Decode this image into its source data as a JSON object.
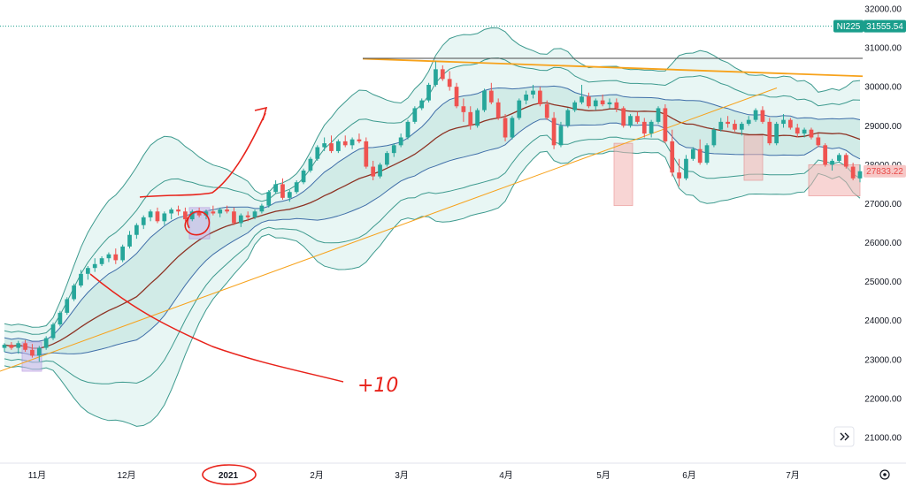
{
  "colors": {
    "up": "#26a69a",
    "down": "#ef5350",
    "band_outer": "#3d9a8e",
    "band_fill": "#d6efeb",
    "mid_line": "#8d3324",
    "inner_band": "#3f6ea8",
    "resistance": "#f7a21b",
    "support": "#f7a21b",
    "top_line": "#4a4a4a",
    "highlight_red": "#f3b4b2",
    "highlight_purple": "#c9b3ea",
    "annotation": "#e8221a",
    "ticker_bg": "#1a9e8c",
    "last_price_bg": "#f7c7c6",
    "last_price_text": "#e84a47"
  },
  "icons": {
    "scroll": "double-chevron-right-icon",
    "settings": "gear-icon"
  },
  "annotation_text": "+10",
  "chart_data": {
    "type": "candlestick",
    "symbol": "NI225",
    "reference_price": "31555.54",
    "last_price": "27833.22",
    "x": [
      "11月",
      "12月",
      "2021",
      "2月",
      "3月",
      "4月",
      "5月",
      "6月",
      "7月"
    ],
    "yticks": [
      "32000.00",
      "31000.00",
      "30000.00",
      "29000.00",
      "28000.00",
      "27000.00",
      "26000.00",
      "25000.00",
      "24000.00",
      "23000.00",
      "22000.00",
      "21000.00"
    ],
    "ylim": [
      20600,
      32200
    ],
    "grid": false,
    "series": [
      {
        "values": [
          [
            23300,
            23420,
            23200,
            23380
          ],
          [
            23380,
            23450,
            23250,
            23300
          ],
          [
            23300,
            23480,
            23150,
            23420
          ],
          [
            23420,
            23500,
            23200,
            23250
          ],
          [
            23250,
            23400,
            23050,
            23100
          ],
          [
            23100,
            23350,
            22950,
            23300
          ],
          [
            23300,
            23600,
            23250,
            23550
          ],
          [
            23550,
            23950,
            23500,
            23900
          ],
          [
            23900,
            24250,
            23850,
            24200
          ],
          [
            24200,
            24600,
            24150,
            24550
          ],
          [
            24550,
            24950,
            24500,
            24900
          ],
          [
            24900,
            25300,
            24850,
            25200
          ],
          [
            25200,
            25400,
            25050,
            25350
          ],
          [
            25350,
            25600,
            25250,
            25450
          ],
          [
            25450,
            25650,
            25400,
            25600
          ],
          [
            25600,
            25750,
            25500,
            25700
          ],
          [
            25700,
            25850,
            25450,
            25550
          ],
          [
            25550,
            25950,
            25500,
            25900
          ],
          [
            25900,
            26300,
            25850,
            26200
          ],
          [
            26200,
            26500,
            26100,
            26450
          ],
          [
            26450,
            26700,
            26350,
            26650
          ],
          [
            26650,
            26850,
            26550,
            26800
          ],
          [
            26800,
            26900,
            26500,
            26550
          ],
          [
            26550,
            26800,
            26450,
            26750
          ],
          [
            26750,
            26900,
            26600,
            26850
          ],
          [
            26850,
            26950,
            26700,
            26800
          ],
          [
            26800,
            26900,
            26550,
            26600
          ],
          [
            26600,
            26850,
            26550,
            26800
          ],
          [
            26800,
            26900,
            26650,
            26700
          ],
          [
            26700,
            26850,
            26600,
            26800
          ],
          [
            26800,
            26950,
            26700,
            26750
          ],
          [
            26750,
            26900,
            26650,
            26850
          ],
          [
            26850,
            26950,
            26750,
            26800
          ],
          [
            26800,
            26900,
            26450,
            26500
          ],
          [
            26500,
            26750,
            26400,
            26700
          ],
          [
            26700,
            26800,
            26550,
            26650
          ],
          [
            26650,
            26850,
            26600,
            26800
          ],
          [
            26800,
            27000,
            26750,
            26950
          ],
          [
            26950,
            27350,
            26900,
            27300
          ],
          [
            27300,
            27600,
            27250,
            27500
          ],
          [
            27500,
            27650,
            27100,
            27150
          ],
          [
            27150,
            27350,
            27050,
            27300
          ],
          [
            27300,
            27600,
            27250,
            27550
          ],
          [
            27550,
            27900,
            27500,
            27850
          ],
          [
            27850,
            28200,
            27800,
            28150
          ],
          [
            28150,
            28500,
            28100,
            28450
          ],
          [
            28450,
            28700,
            28350,
            28550
          ],
          [
            28550,
            28750,
            28300,
            28350
          ],
          [
            28350,
            28650,
            28300,
            28600
          ],
          [
            28600,
            28750,
            28450,
            28500
          ],
          [
            28500,
            28700,
            28400,
            28650
          ],
          [
            28650,
            28800,
            28550,
            28600
          ],
          [
            28600,
            28700,
            27900,
            27950
          ],
          [
            27950,
            28100,
            27600,
            27700
          ],
          [
            27700,
            28050,
            27650,
            28000
          ],
          [
            28000,
            28350,
            27950,
            28300
          ],
          [
            28300,
            28550,
            28200,
            28500
          ],
          [
            28500,
            28800,
            28450,
            28700
          ],
          [
            28700,
            29150,
            28650,
            29100
          ],
          [
            29100,
            29500,
            29050,
            29450
          ],
          [
            29450,
            29700,
            29400,
            29650
          ],
          [
            29650,
            30100,
            29600,
            30050
          ],
          [
            30050,
            30650,
            30000,
            30450
          ],
          [
            30450,
            30550,
            30150,
            30200
          ],
          [
            30200,
            30400,
            29900,
            30000
          ],
          [
            30000,
            30100,
            29450,
            29500
          ],
          [
            29500,
            29700,
            29100,
            29350
          ],
          [
            29350,
            29500,
            28900,
            29000
          ],
          [
            29000,
            29450,
            28950,
            29400
          ],
          [
            29400,
            29950,
            29350,
            29900
          ],
          [
            29900,
            30100,
            29550,
            29600
          ],
          [
            29600,
            29700,
            29150,
            29200
          ],
          [
            29200,
            29300,
            28600,
            28700
          ],
          [
            28700,
            29250,
            28650,
            29200
          ],
          [
            29200,
            29700,
            29150,
            29650
          ],
          [
            29650,
            29900,
            29550,
            29800
          ],
          [
            29800,
            30050,
            29700,
            29900
          ],
          [
            29900,
            30000,
            29500,
            29550
          ],
          [
            29550,
            29650,
            29150,
            29200
          ],
          [
            29200,
            29350,
            28400,
            28500
          ],
          [
            28500,
            29100,
            28450,
            29000
          ],
          [
            29000,
            29450,
            28950,
            29400
          ],
          [
            29400,
            29650,
            29350,
            29600
          ],
          [
            29600,
            30050,
            29550,
            29750
          ],
          [
            29750,
            29850,
            29450,
            29500
          ],
          [
            29500,
            29700,
            29400,
            29650
          ],
          [
            29650,
            29800,
            29500,
            29550
          ],
          [
            29550,
            29700,
            29450,
            29600
          ],
          [
            29600,
            29700,
            29350,
            29450
          ],
          [
            29450,
            29500,
            28950,
            29000
          ],
          [
            29000,
            29300,
            28950,
            29250
          ],
          [
            29250,
            29350,
            29050,
            29100
          ],
          [
            29100,
            29200,
            28700,
            28800
          ],
          [
            28800,
            29150,
            28700,
            29100
          ],
          [
            29100,
            29500,
            29050,
            29450
          ],
          [
            29450,
            29550,
            28550,
            28600
          ],
          [
            28600,
            28900,
            27700,
            27800
          ],
          [
            27800,
            28150,
            27450,
            27650
          ],
          [
            27650,
            28250,
            27600,
            28150
          ],
          [
            28150,
            28450,
            28100,
            28400
          ],
          [
            28400,
            28650,
            28000,
            28050
          ],
          [
            28050,
            28550,
            28000,
            28500
          ],
          [
            28500,
            28950,
            28450,
            28900
          ],
          [
            28900,
            29200,
            28850,
            29100
          ],
          [
            29100,
            29250,
            28950,
            29050
          ],
          [
            29050,
            29150,
            28850,
            28900
          ],
          [
            28900,
            29100,
            28750,
            29050
          ],
          [
            29050,
            29250,
            29000,
            29150
          ],
          [
            29150,
            29450,
            29100,
            29400
          ],
          [
            29400,
            29500,
            29050,
            29100
          ],
          [
            29100,
            29200,
            28500,
            28550
          ],
          [
            28550,
            29100,
            28500,
            29050
          ],
          [
            29050,
            29300,
            28950,
            29150
          ],
          [
            29150,
            29200,
            28900,
            28950
          ],
          [
            28950,
            29050,
            28700,
            28800
          ],
          [
            28800,
            28950,
            28700,
            28900
          ],
          [
            28900,
            28950,
            28650,
            28700
          ],
          [
            28700,
            28800,
            28450,
            28500
          ],
          [
            28500,
            28550,
            27950,
            28000
          ],
          [
            28000,
            28150,
            27850,
            28100
          ],
          [
            28100,
            28300,
            28050,
            28250
          ],
          [
            28250,
            28300,
            27900,
            27950
          ],
          [
            27950,
            28050,
            27600,
            27650
          ],
          [
            27650,
            28000,
            27550,
            27833
          ]
        ]
      }
    ]
  }
}
